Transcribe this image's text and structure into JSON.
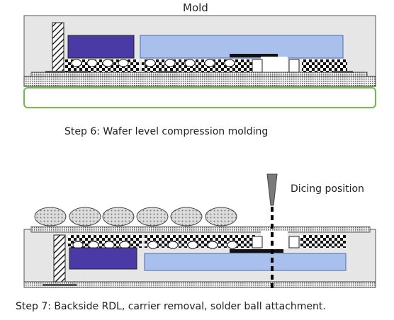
{
  "labels": {
    "mold": "Mold",
    "step6": "Step 6: Wafer level compression molding",
    "dicing": "Dicing position",
    "step7": "Step 7: Backside RDL, carrier removal, solder ball attachment."
  },
  "colors": {
    "mold": "#e6e6e6",
    "die_dark": "#4a3aa5",
    "die_light": "#a9c0ec",
    "carrier_border": "#6cbe45",
    "dicing_blade": "#7a7a7a"
  }
}
